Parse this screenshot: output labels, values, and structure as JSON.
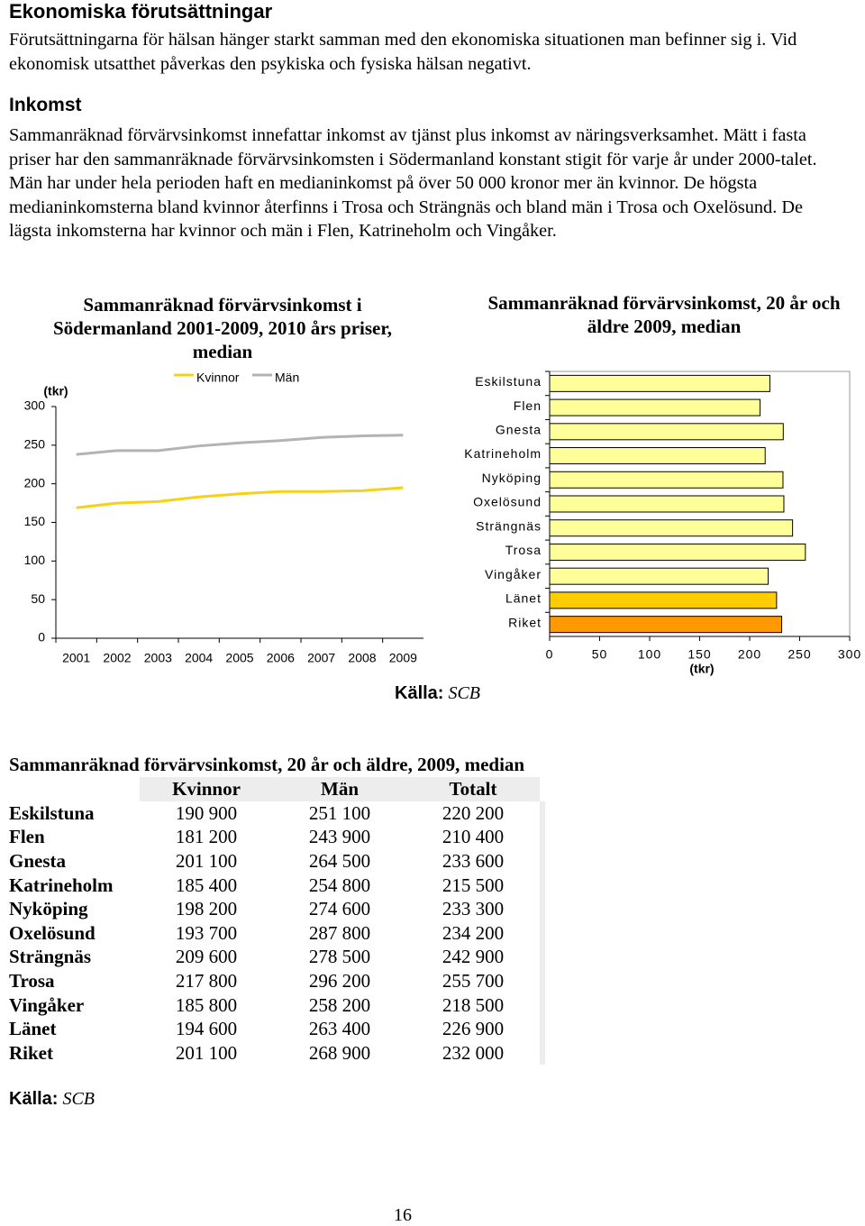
{
  "heading": "Ekonomiska förutsättningar",
  "intro": "Förutsättningarna för hälsan hänger starkt samman med den ekonomiska situationen man befinner sig i. Vid ekonomisk utsatthet påverkas den psykiska och fysiska hälsan negativt.",
  "subheading": "Inkomst",
  "body": "Sammanräknad förvärvsinkomst innefattar inkomst av tjänst plus inkomst av näringsverksamhet. Mätt i fasta priser har den sammanräknade förvärvsinkomsten i Södermanland konstant stigit för varje år under 2000-talet. Män har under hela perioden haft en medianinkomst på över 50 000 kronor mer än kvinnor. De högsta medianinkomsterna bland kvinnor återfinns i Trosa och Strängnäs och bland män i Trosa och Oxelösund. De lägsta inkomsterna har kvinnor och män i Flen, Katrineholm och Vingåker.",
  "chart_data": [
    {
      "type": "line",
      "title": "Sammanräknad förvärvsinkomst i Södermanland 2001-2009, 2010 års priser, median",
      "y_label": "(tkr)",
      "categories": [
        "2001",
        "2002",
        "2003",
        "2004",
        "2005",
        "2006",
        "2007",
        "2008",
        "2009"
      ],
      "series": [
        {
          "name": "Kvinnor",
          "color": "#f7d117",
          "values": [
            169,
            175,
            177,
            183,
            187,
            190,
            190,
            191,
            195
          ]
        },
        {
          "name": "Män",
          "color": "#b3b3b3",
          "values": [
            238,
            243,
            243,
            249,
            253,
            256,
            260,
            262,
            263
          ]
        }
      ],
      "ylim": [
        0,
        300
      ],
      "yticks": [
        0,
        50,
        100,
        150,
        200,
        250,
        300
      ],
      "legend": "top",
      "grid": false
    },
    {
      "type": "hbar",
      "title": "Sammanräknad förvärvsinkomst, 20 år och äldre 2009, median",
      "x_label": "(tkr)",
      "categories": [
        "Eskilstuna",
        "Flen",
        "Gnesta",
        "Katrineholm",
        "Nyköping",
        "Oxelösund",
        "Strängnäs",
        "Trosa",
        "Vingåker",
        "Länet",
        "Riket"
      ],
      "values": [
        220.2,
        210.4,
        233.6,
        215.5,
        233.3,
        234.2,
        242.9,
        255.7,
        218.5,
        226.9,
        232.0
      ],
      "colors": [
        "#ffff99",
        "#ffff99",
        "#ffff99",
        "#ffff99",
        "#ffff99",
        "#ffff99",
        "#ffff99",
        "#ffff99",
        "#ffff99",
        "#ffcc00",
        "#ff9900"
      ],
      "xlim": [
        0,
        300
      ],
      "xticks": [
        0,
        50,
        100,
        150,
        200,
        250,
        300
      ],
      "grid": false
    }
  ],
  "chart_source": {
    "label": "Källa:",
    "name": "SCB"
  },
  "table": {
    "title": "Sammanräknad förvärvsinkomst, 20 år och äldre, 2009, median",
    "columns": [
      "Kvinnor",
      "Män",
      "Totalt"
    ],
    "rows": [
      [
        "Eskilstuna",
        "190 900",
        "251 100",
        "220 200"
      ],
      [
        "Flen",
        "181 200",
        "243 900",
        "210 400"
      ],
      [
        "Gnesta",
        "201 100",
        "264 500",
        "233 600"
      ],
      [
        "Katrineholm",
        "185 400",
        "254 800",
        "215 500"
      ],
      [
        "Nyköping",
        "198 200",
        "274 600",
        "233 300"
      ],
      [
        "Oxelösund",
        "193 700",
        "287 800",
        "234 200"
      ],
      [
        "Strängnäs",
        "209 600",
        "278 500",
        "242 900"
      ],
      [
        "Trosa",
        "217 800",
        "296 200",
        "255 700"
      ],
      [
        "Vingåker",
        "185 800",
        "258 200",
        "218 500"
      ],
      [
        "Länet",
        "194 600",
        "263 400",
        "226 900"
      ],
      [
        "Riket",
        "201 100",
        "268 900",
        "232 000"
      ]
    ]
  },
  "table_source": {
    "label": "Källa:",
    "name": "SCB"
  },
  "page_number": "16"
}
